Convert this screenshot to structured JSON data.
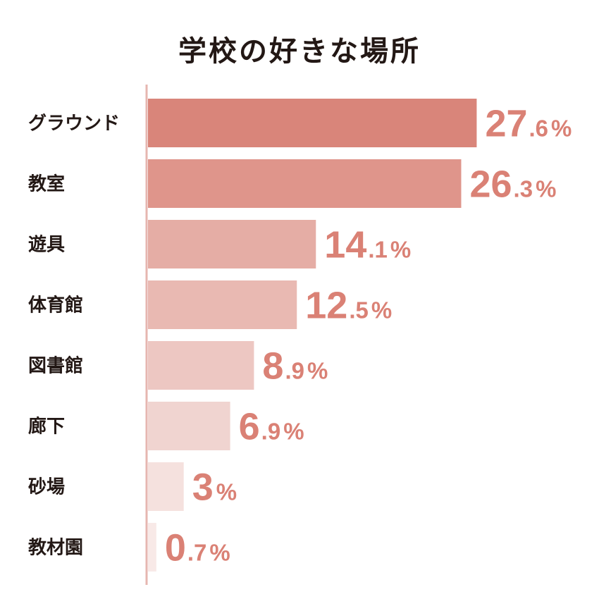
{
  "chart_data": {
    "type": "bar",
    "orientation": "horizontal",
    "title": "学校の好きな場所",
    "categories": [
      "グラウンド",
      "教室",
      "遊具",
      "体育館",
      "図書館",
      "廊下",
      "砂場",
      "教材園"
    ],
    "values": [
      27.6,
      26.3,
      14.1,
      12.5,
      8.9,
      6.9,
      3,
      0.7
    ],
    "value_labels": [
      "27.6%",
      "26.3%",
      "14.1%",
      "12.5%",
      "8.9%",
      "6.9%",
      "3%",
      "0.7%"
    ],
    "unit": "%",
    "xlim": [
      0,
      28
    ],
    "grid": false,
    "legend": "none",
    "colors": {
      "bars": [
        "#d9857a",
        "#df958b",
        "#e5ada5",
        "#e9b9b2",
        "#edc7c2",
        "#f0d4d0",
        "#f5e1de",
        "#f8e9e7"
      ],
      "value_text": "#da8175",
      "axis": "#e6b6b0",
      "text": "#231815"
    }
  }
}
